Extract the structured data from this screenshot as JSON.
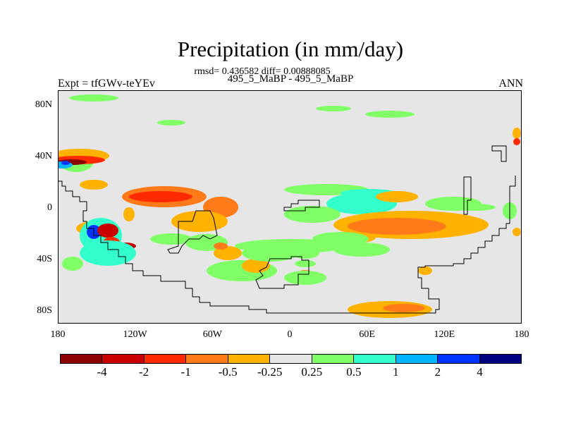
{
  "title": "Precipitation (in mm/day)",
  "stats": "rmsd= 0.436582 diff= 0.00888085",
  "subtitle": "495_5_MaBP - 495_5_MaBP",
  "expt": "Expt = tfGWv-teYEv",
  "season": "ANN",
  "colors": {
    "background": "#e6e6e6",
    "scale": [
      "#8b0000",
      "#c80000",
      "#ff2a00",
      "#ff7b1a",
      "#ffb200",
      "#e6e6e6",
      "#80ff66",
      "#33ffcc",
      "#00b4ff",
      "#0033ff",
      "#000080"
    ]
  },
  "chart_data": {
    "type": "map-contour",
    "variable": "Precipitation difference",
    "units": "mm/day",
    "lat_ticks": [
      "80N",
      "40N",
      "0",
      "40S",
      "80S"
    ],
    "lon_ticks": [
      "180",
      "120W",
      "60W",
      "0",
      "60E",
      "120E",
      "180"
    ],
    "lat_range": [
      -90,
      90
    ],
    "lon_range": [
      -180,
      180
    ],
    "contour_levels": [
      -4,
      -2,
      -1,
      -0.5,
      -0.25,
      0.25,
      0.5,
      1,
      2,
      4
    ],
    "colorbar_labels": [
      "-4",
      "-2",
      "-1",
      "-0.5",
      "-0.25",
      "0.25",
      "0.5",
      "1",
      "2",
      "4"
    ]
  }
}
